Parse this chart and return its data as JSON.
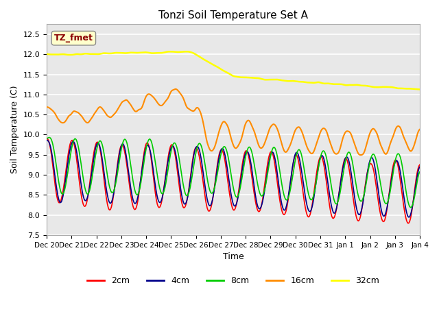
{
  "title": "Tonzi Soil Temperature Set A",
  "xlabel": "Time",
  "ylabel": "Soil Temperature (C)",
  "ylim": [
    7.5,
    12.75
  ],
  "annotation": "TZ_fmet",
  "annotation_color": "#8B0000",
  "annotation_bg": "#FFFFCC",
  "bg_color": "#E8E8E8",
  "grid_color": "#FFFFFF",
  "legend_labels": [
    "2cm",
    "4cm",
    "8cm",
    "16cm",
    "32cm"
  ],
  "legend_colors": [
    "#FF0000",
    "#00008B",
    "#00CC00",
    "#FF8C00",
    "#FFFF00"
  ],
  "tick_labels": [
    "Dec 20",
    "Dec 21",
    "Dec 22",
    "Dec 23",
    "Dec 24",
    "Dec 25",
    "Dec 26",
    "Dec 27",
    "Dec 28",
    "Dec 29",
    "Dec 30",
    "Dec 31",
    "Jan 1",
    "Jan 2",
    "Jan 3",
    "Jan 4"
  ],
  "n_points": 480
}
